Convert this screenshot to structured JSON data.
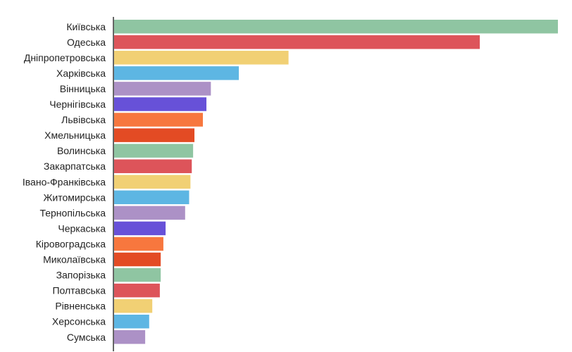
{
  "chart_data": {
    "type": "bar",
    "orientation": "horizontal",
    "title": "",
    "xlabel": "",
    "ylabel": "",
    "grid": false,
    "legend": "none",
    "xlim": [
      0,
      100
    ],
    "categories": [
      "Київська",
      "Одеська",
      "Дніпропетровська",
      "Харківська",
      "Вінницька",
      "Чернігівська",
      "Львівська",
      "Хмельницька",
      "Волинська",
      "Закарпатська",
      "Івано-Франківська",
      "Житомирська",
      "Тернопільська",
      "Черкаська",
      "Кіровоградська",
      "Миколаївська",
      "Запорізька",
      "Полтавська",
      "Рівненська",
      "Херсонська",
      "Сумська"
    ],
    "values": [
      100,
      82.4,
      39.3,
      28.1,
      21.8,
      20.8,
      20.0,
      18.1,
      17.8,
      17.5,
      17.2,
      16.9,
      16.0,
      11.6,
      11.1,
      10.5,
      10.5,
      10.3,
      8.6,
      7.9,
      7.0
    ],
    "colors": [
      "#8fc5a2",
      "#dd545a",
      "#f1d074",
      "#5db6e3",
      "#ac91c6",
      "#6751d8",
      "#f7773e",
      "#e34b24"
    ]
  }
}
